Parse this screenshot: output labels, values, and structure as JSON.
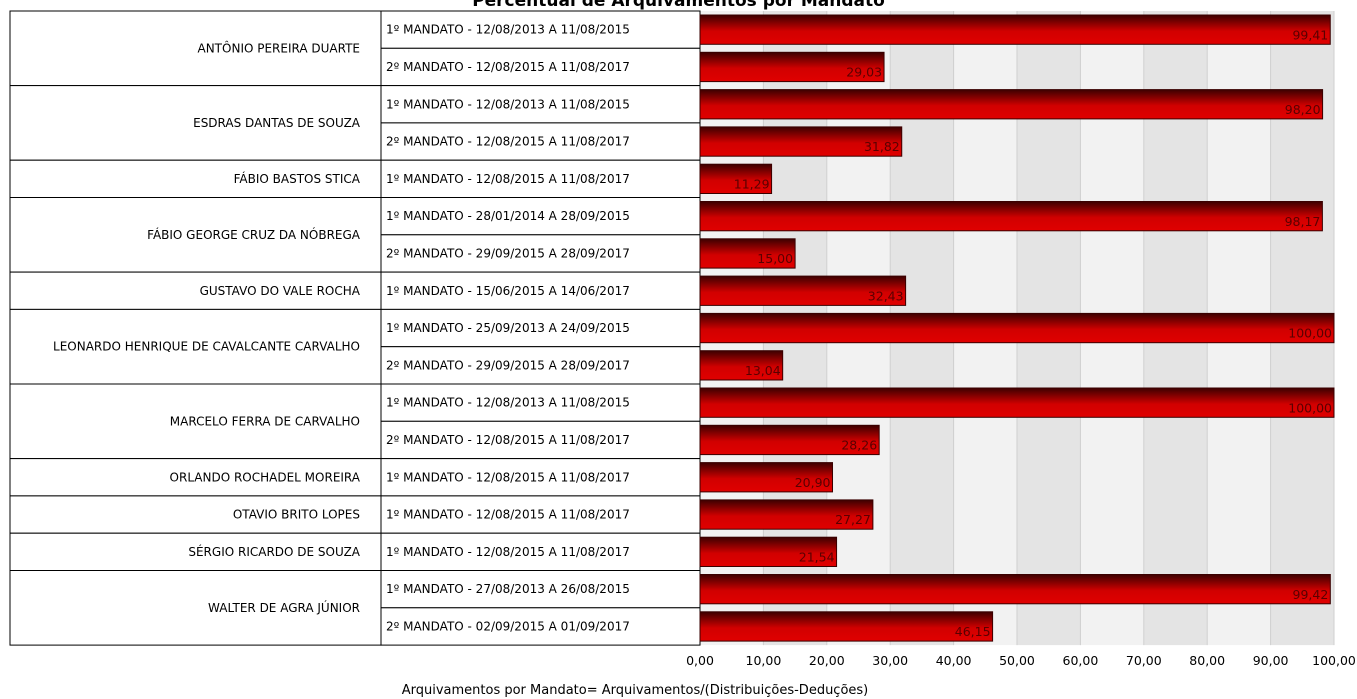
{
  "chart_data": {
    "type": "bar",
    "orientation": "horizontal",
    "title": "Percentual de Arquivamentos por Mandato",
    "xlabel": "Arquivamentos por Mandato= Arquivamentos/(Distribuições-Deduções)",
    "xlim": [
      0,
      100
    ],
    "xticks": [
      "0,00",
      "10,00",
      "20,00",
      "30,00",
      "40,00",
      "50,00",
      "60,00",
      "70,00",
      "80,00",
      "90,00",
      "100,00"
    ],
    "grid": true,
    "bar_color": "#c40000",
    "groups": [
      {
        "name": "ANTÔNIO PEREIRA DUARTE",
        "bars": [
          {
            "label": "1º MANDATO - 12/08/2013 A 11/08/2015",
            "value": 99.41,
            "text": "99,41"
          },
          {
            "label": "2º MANDATO - 12/08/2015 A 11/08/2017",
            "value": 29.03,
            "text": "29,03"
          }
        ]
      },
      {
        "name": "ESDRAS DANTAS DE SOUZA",
        "bars": [
          {
            "label": "1º MANDATO - 12/08/2013 A 11/08/2015",
            "value": 98.2,
            "text": "98,20"
          },
          {
            "label": "2º MANDATO - 12/08/2015 A 11/08/2017",
            "value": 31.82,
            "text": "31,82"
          }
        ]
      },
      {
        "name": "FÁBIO BASTOS STICA",
        "bars": [
          {
            "label": "1º MANDATO - 12/08/2015 A 11/08/2017",
            "value": 11.29,
            "text": "11,29"
          }
        ]
      },
      {
        "name": "FÁBIO GEORGE CRUZ DA NÓBREGA",
        "bars": [
          {
            "label": "1º MANDATO - 28/01/2014 A 28/09/2015",
            "value": 98.17,
            "text": "98,17"
          },
          {
            "label": "2º MANDATO - 29/09/2015 A 28/09/2017",
            "value": 15.0,
            "text": "15,00"
          }
        ]
      },
      {
        "name": "GUSTAVO DO VALE ROCHA",
        "bars": [
          {
            "label": "1º MANDATO - 15/06/2015 A 14/06/2017",
            "value": 32.43,
            "text": "32,43"
          }
        ]
      },
      {
        "name": "LEONARDO HENRIQUE DE CAVALCANTE CARVALHO",
        "bars": [
          {
            "label": "1º MANDATO - 25/09/2013 A 24/09/2015",
            "value": 100.0,
            "text": "100,00"
          },
          {
            "label": "2º MANDATO - 29/09/2015 A 28/09/2017",
            "value": 13.04,
            "text": "13,04"
          }
        ]
      },
      {
        "name": "MARCELO FERRA DE CARVALHO",
        "bars": [
          {
            "label": "1º MANDATO - 12/08/2013 A 11/08/2015",
            "value": 100.0,
            "text": "100,00"
          },
          {
            "label": "2º MANDATO - 12/08/2015 A 11/08/2017",
            "value": 28.26,
            "text": "28,26"
          }
        ]
      },
      {
        "name": "ORLANDO ROCHADEL MOREIRA",
        "bars": [
          {
            "label": "1º MANDATO - 12/08/2015 A 11/08/2017",
            "value": 20.9,
            "text": "20,90"
          }
        ]
      },
      {
        "name": "OTAVIO BRITO LOPES",
        "bars": [
          {
            "label": "1º MANDATO - 12/08/2015 A 11/08/2017",
            "value": 27.27,
            "text": "27,27"
          }
        ]
      },
      {
        "name": "SÉRGIO RICARDO DE SOUZA",
        "bars": [
          {
            "label": "1º MANDATO - 12/08/2015 A 11/08/2017",
            "value": 21.54,
            "text": "21,54"
          }
        ]
      },
      {
        "name": "WALTER DE AGRA JÚNIOR",
        "bars": [
          {
            "label": "1º MANDATO - 27/08/2013 A 26/08/2015",
            "value": 99.42,
            "text": "99,42"
          },
          {
            "label": "2º MANDATO - 02/09/2015 A 01/09/2017",
            "value": 46.15,
            "text": "46,15"
          }
        ]
      }
    ]
  }
}
